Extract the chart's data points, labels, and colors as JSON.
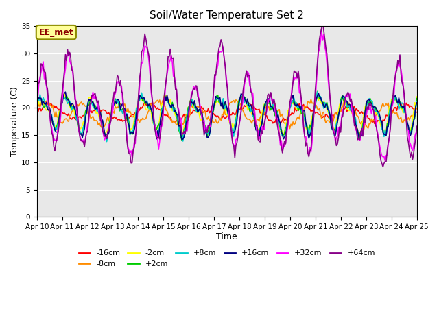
{
  "title": "Soil/Water Temperature Set 2",
  "xlabel": "Time",
  "ylabel": "Temperature (C)",
  "ylim": [
    0,
    35
  ],
  "yticks": [
    0,
    5,
    10,
    15,
    20,
    25,
    30,
    35
  ],
  "background_color": "#ffffff",
  "plot_bg_color": "#e8e8e8",
  "annotation": {
    "text": "EE_met",
    "fontsize": 9,
    "color": "#8b0000",
    "bg": "#ffff99",
    "border_color": "#8b8b00"
  },
  "n_points": 360,
  "x_tick_labels": [
    "Apr 10",
    "Apr 11",
    "Apr 12",
    "Apr 13",
    "Apr 14",
    "Apr 15",
    "Apr 16",
    "Apr 17",
    "Apr 18",
    "Apr 19",
    "Apr 20",
    "Apr 21",
    "Apr 22",
    "Apr 23",
    "Apr 24",
    "Apr 25"
  ],
  "legend_entries": [
    [
      "-16cm",
      "#ff0000"
    ],
    [
      "-8cm",
      "#ff8c00"
    ],
    [
      "-2cm",
      "#ffff00"
    ],
    [
      "+2cm",
      "#00cc00"
    ],
    [
      "+8cm",
      "#00cccc"
    ],
    [
      "+16cm",
      "#000080"
    ],
    [
      "+32cm",
      "#ff00ff"
    ],
    [
      "+64cm",
      "#880088"
    ]
  ]
}
